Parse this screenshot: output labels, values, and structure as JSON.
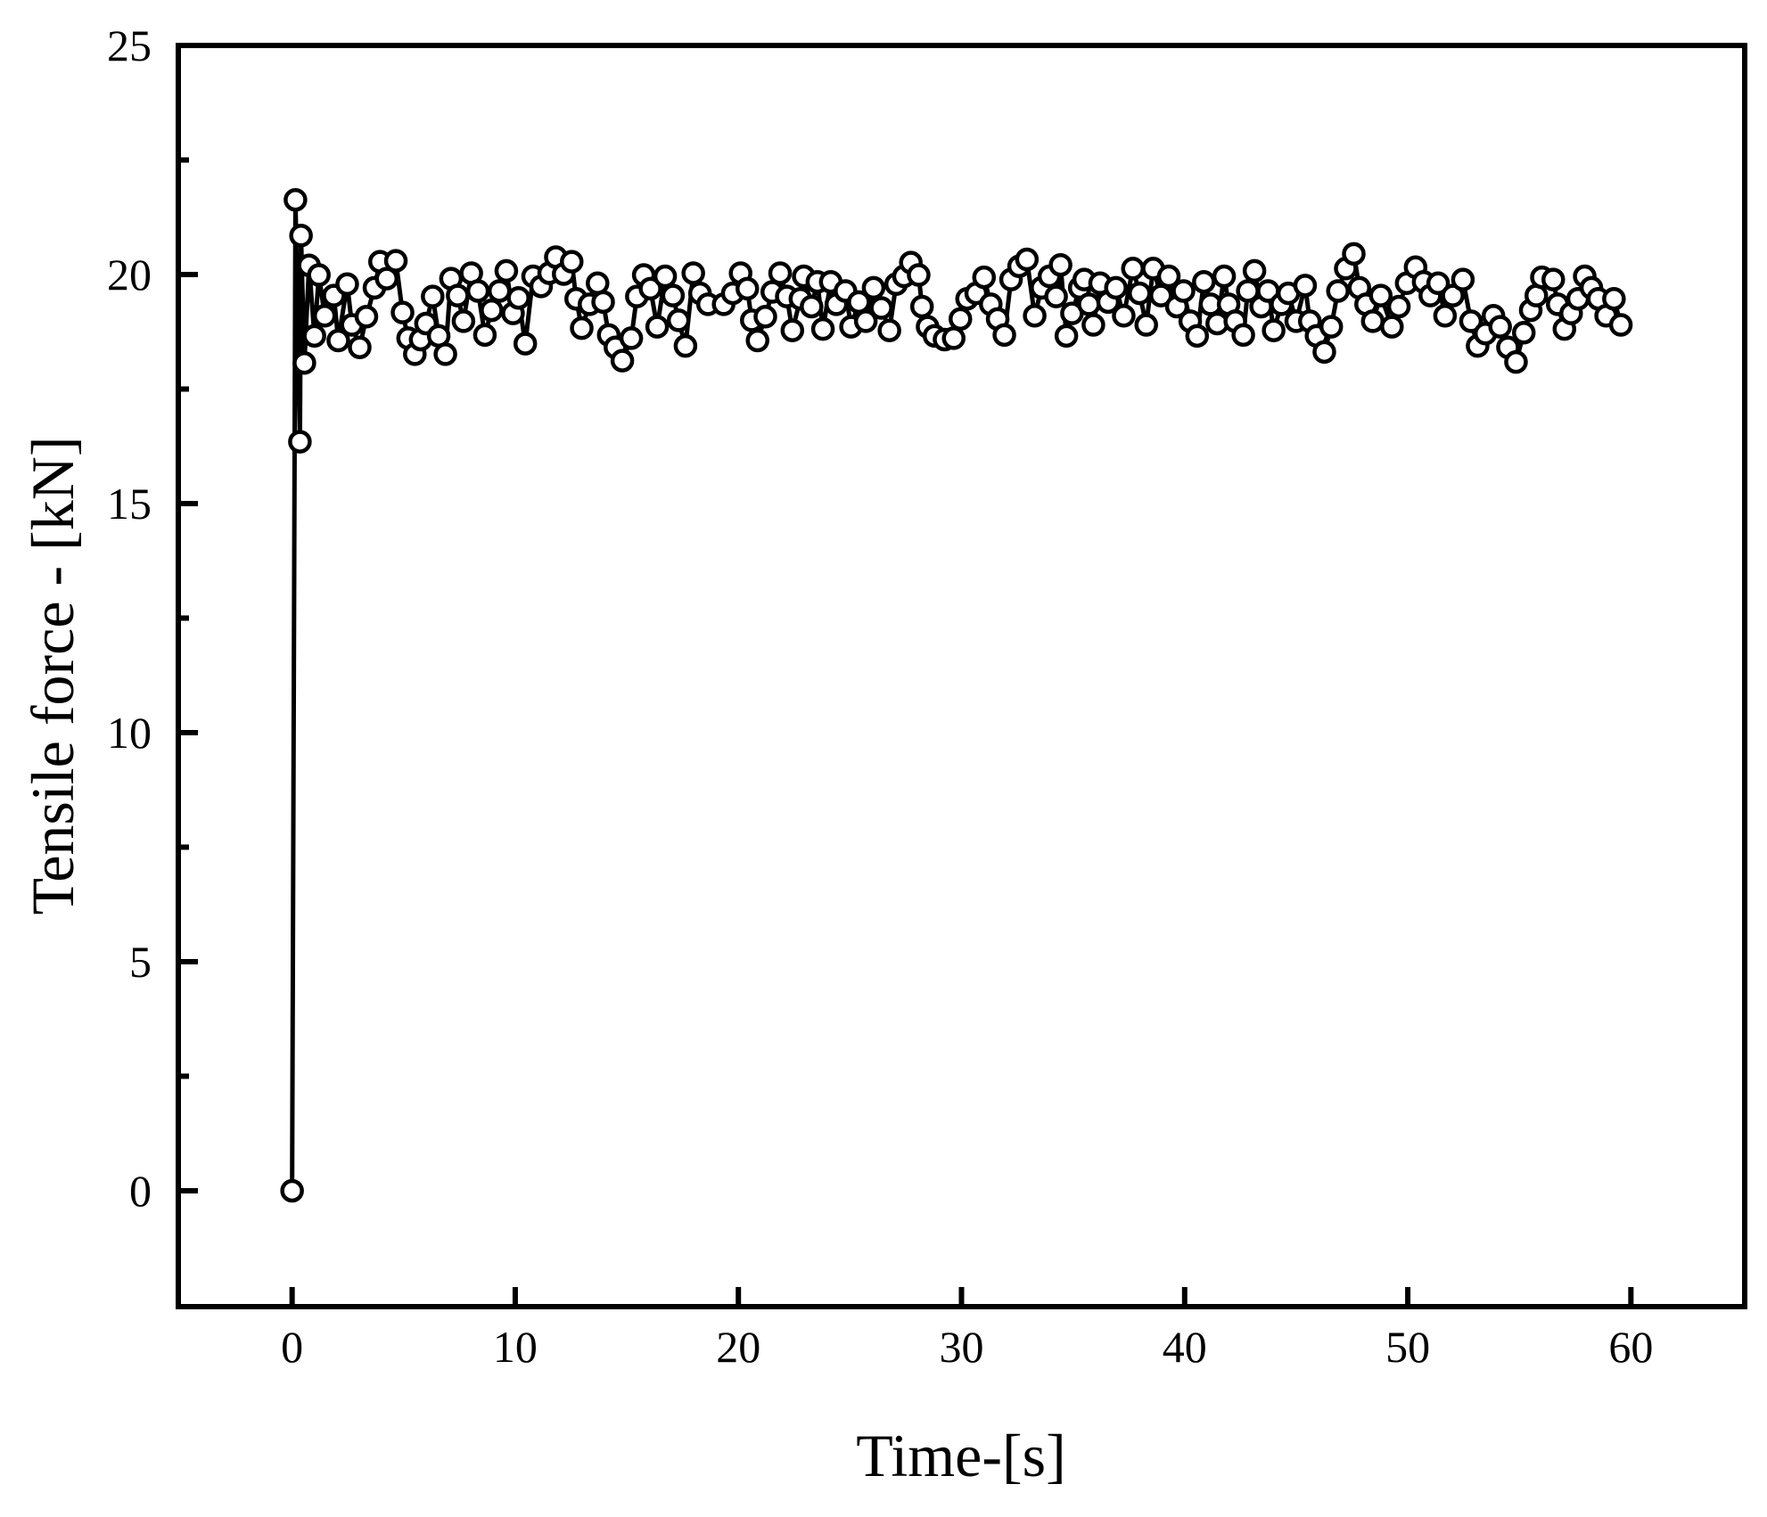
{
  "chart_data": {
    "type": "line",
    "x_label": "Time-[s]",
    "y_label": "Tensile force - [kN]",
    "xlim": [
      -5.1,
      65.1
    ],
    "ylim": [
      -2.53,
      25
    ],
    "xticks": [
      0,
      10,
      20,
      30,
      40,
      50,
      60
    ],
    "yticks": [
      0,
      5,
      10,
      15,
      20,
      25
    ],
    "yminorticks": [
      2.5,
      7.5,
      12.5,
      17.5,
      22.5
    ],
    "color": "#000000",
    "marker": "open-circle",
    "x": [
      0,
      0.15,
      0.35,
      0.4,
      0.55,
      0.76,
      1.0,
      1.2,
      1.46,
      1.87,
      2.07,
      2.47,
      2.68,
      3.03,
      3.33,
      3.69,
      3.94,
      4.24,
      4.65,
      4.95,
      5.2,
      5.5,
      5.76,
      6.0,
      6.3,
      6.57,
      6.87,
      7.12,
      7.42,
      7.68,
      8.03,
      8.33,
      8.64,
      8.94,
      9.29,
      9.6,
      9.9,
      10.15,
      10.45,
      10.8,
      11.16,
      11.52,
      11.82,
      12.17,
      12.53,
      12.73,
      12.98,
      13.33,
      13.69,
      13.94,
      14.19,
      14.49,
      14.8,
      15.2,
      15.45,
      15.76,
      16.06,
      16.36,
      16.72,
      17.07,
      17.32,
      17.63,
      17.98,
      18.28,
      18.64,
      19.34,
      19.75,
      20.1,
      20.4,
      20.6,
      20.86,
      21.21,
      21.52,
      21.87,
      22.17,
      22.42,
      22.78,
      22.93,
      23.28,
      23.54,
      23.79,
      24.14,
      24.39,
      24.8,
      25.05,
      25.4,
      25.71,
      26.06,
      26.41,
      26.77,
      27.07,
      27.42,
      27.73,
      28.08,
      28.23,
      28.48,
      28.79,
      29.24,
      29.65,
      29.95,
      30.25,
      30.66,
      31.01,
      31.31,
      31.62,
      31.92,
      32.22,
      32.58,
      32.93,
      33.28,
      33.59,
      33.94,
      34.24,
      34.44,
      34.7,
      34.95,
      35.3,
      35.5,
      35.71,
      35.91,
      36.21,
      36.57,
      36.92,
      37.27,
      37.68,
      37.98,
      38.28,
      38.59,
      38.94,
      39.29,
      39.65,
      39.95,
      40.25,
      40.56,
      40.86,
      41.16,
      41.46,
      41.77,
      41.97,
      42.27,
      42.63,
      42.83,
      43.13,
      43.43,
      43.74,
      43.99,
      44.34,
      44.65,
      45.0,
      45.4,
      45.61,
      45.91,
      46.26,
      46.57,
      46.87,
      47.22,
      47.58,
      47.83,
      48.13,
      48.43,
      48.79,
      49.29,
      49.6,
      49.95,
      50.35,
      50.71,
      51.01,
      51.36,
      51.67,
      52.02,
      52.47,
      52.83,
      53.13,
      53.48,
      53.84,
      54.14,
      54.49,
      54.85,
      55.2,
      55.51,
      55.76,
      56.01,
      56.52,
      56.72,
      57.02,
      57.32,
      57.63,
      57.93,
      58.23,
      58.54,
      58.89,
      59.24,
      59.55
    ],
    "values": [
      0,
      21.63,
      16.35,
      20.85,
      18.07,
      20.2,
      18.66,
      19.99,
      19.1,
      19.54,
      18.56,
      19.79,
      18.9,
      18.41,
      19.08,
      19.71,
      20.28,
      19.91,
      20.3,
      19.17,
      18.61,
      18.26,
      18.58,
      18.93,
      19.52,
      18.66,
      18.26,
      19.91,
      19.54,
      18.98,
      20.03,
      19.64,
      18.68,
      19.22,
      19.64,
      20.08,
      19.15,
      19.49,
      18.49,
      19.96,
      19.74,
      20.03,
      20.38,
      20.01,
      20.28,
      19.47,
      18.83,
      19.35,
      19.81,
      19.4,
      18.68,
      18.41,
      18.12,
      18.61,
      19.52,
      19.99,
      19.69,
      18.86,
      19.96,
      19.54,
      19.0,
      18.44,
      20.03,
      19.59,
      19.35,
      19.35,
      19.59,
      20.03,
      19.69,
      19.0,
      18.56,
      19.08,
      19.62,
      20.03,
      19.52,
      18.78,
      19.47,
      19.96,
      19.3,
      19.84,
      18.81,
      19.84,
      19.35,
      19.64,
      18.86,
      19.4,
      18.98,
      19.71,
      19.27,
      18.78,
      19.79,
      19.96,
      20.26,
      19.99,
      19.3,
      18.86,
      18.66,
      18.58,
      18.61,
      19.03,
      19.47,
      19.59,
      19.94,
      19.35,
      19.03,
      18.68,
      19.89,
      20.18,
      20.33,
      19.1,
      19.71,
      19.96,
      19.52,
      20.21,
      18.66,
      19.15,
      19.71,
      19.89,
      19.35,
      18.9,
      19.81,
      19.4,
      19.71,
      19.1,
      20.13,
      19.59,
      18.9,
      20.13,
      19.54,
      19.96,
      19.3,
      19.64,
      18.98,
      18.66,
      19.84,
      19.35,
      18.93,
      19.96,
      19.35,
      18.98,
      18.68,
      19.64,
      20.08,
      19.3,
      19.64,
      18.78,
      19.35,
      19.59,
      18.98,
      19.76,
      18.98,
      18.66,
      18.31,
      18.86,
      19.64,
      20.13,
      20.45,
      19.71,
      19.35,
      18.98,
      19.54,
      18.86,
      19.3,
      19.81,
      20.16,
      19.84,
      19.54,
      19.81,
      19.1,
      19.54,
      19.89,
      18.98,
      18.44,
      18.71,
      19.1,
      18.86,
      18.41,
      18.09,
      18.73,
      19.22,
      19.54,
      19.94,
      19.89,
      19.35,
      18.81,
      19.15,
      19.47,
      19.96,
      19.71,
      19.47,
      19.1,
      19.47,
      18.9
    ]
  }
}
